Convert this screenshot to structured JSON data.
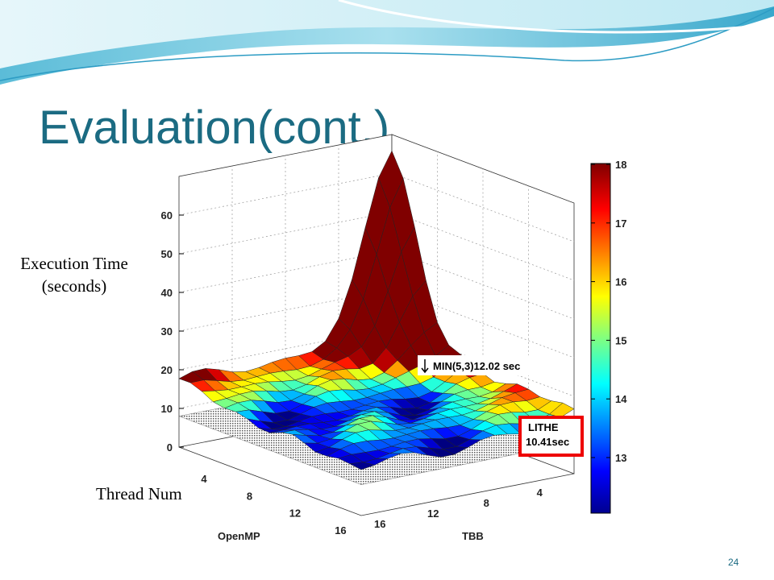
{
  "title": "Evaluation(cont.)",
  "page_number": "24",
  "side_label": "Thread Num",
  "figure": {
    "z_axis_label": [
      "Execution Time",
      "(seconds)"
    ],
    "z_ticks": [
      "0",
      "10",
      "20",
      "30",
      "40",
      "50",
      "60"
    ],
    "x_axis_label": "OpenMP",
    "x_ticks": [
      "4",
      "8",
      "12",
      "16"
    ],
    "y_axis_label": "TBB",
    "y_ticks": [
      "16",
      "12",
      "8",
      "4"
    ],
    "colorbar_ticks": [
      "13",
      "14",
      "15",
      "16",
      "17",
      "18"
    ],
    "annotation_min": "MIN(5,3)12.02 sec",
    "annotation_lithe": [
      "LITHE",
      "10.41sec"
    ]
  }
}
